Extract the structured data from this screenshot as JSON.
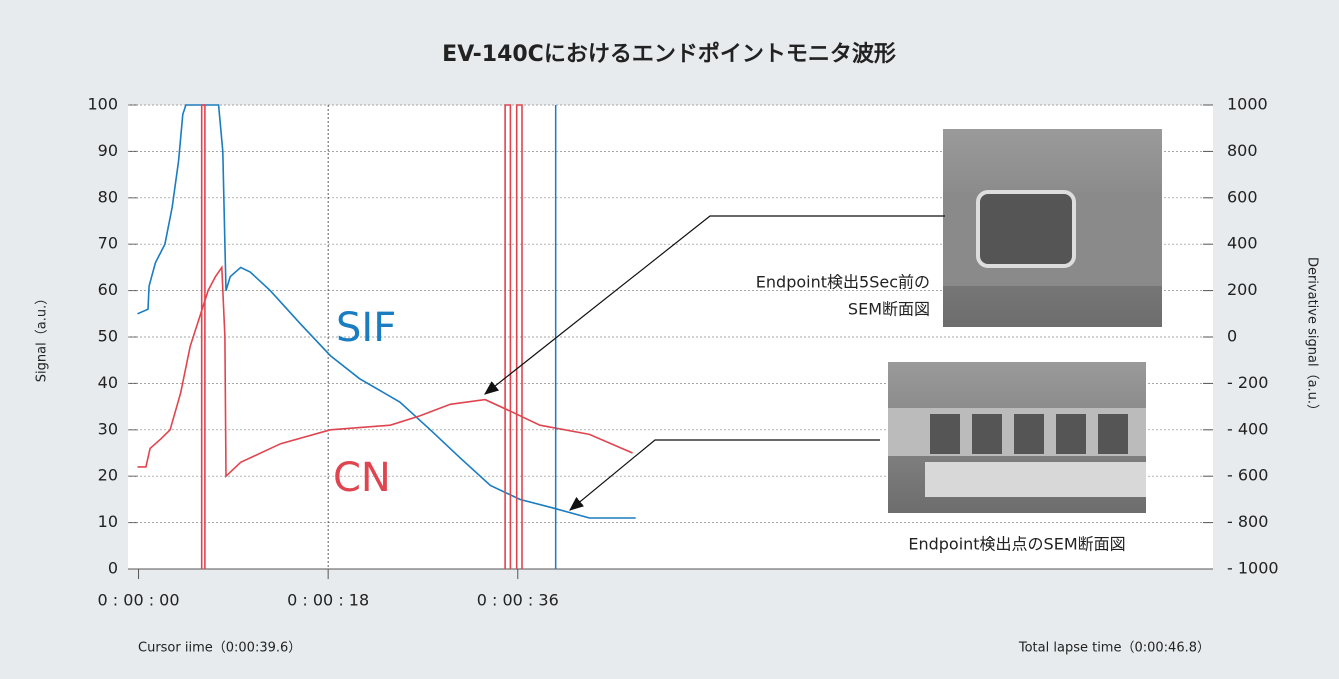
{
  "chart_data": {
    "type": "line",
    "title": "EV-140Cにおけるエンドポイントモニタ波形",
    "ylabel": "Signal（a.u.）",
    "y2label": "Derivative signal（a.u.）",
    "xlim": [
      -1,
      102
    ],
    "xticks": [
      {
        "value": 0,
        "label": "0 : 00 : 00"
      },
      {
        "value": 18,
        "label": "0 : 00 : 18"
      },
      {
        "value": 36,
        "label": "0 : 00 : 36"
      }
    ],
    "ylim": [
      0,
      100
    ],
    "yticks": [
      0,
      10,
      20,
      30,
      40,
      50,
      60,
      70,
      80,
      90,
      100
    ],
    "y2lim": [
      -1000,
      1000
    ],
    "y2ticks": [
      {
        "value": 1000,
        "label": "1000"
      },
      {
        "value": 800,
        "label": "800"
      },
      {
        "value": 600,
        "label": "600"
      },
      {
        "value": 400,
        "label": "400"
      },
      {
        "value": 200,
        "label": "200"
      },
      {
        "value": 0,
        "label": "0"
      },
      {
        "value": -200,
        "label": "- 200"
      },
      {
        "value": -400,
        "label": "- 400"
      },
      {
        "value": -600,
        "label": "- 600"
      },
      {
        "value": -800,
        "label": "- 800"
      },
      {
        "value": -1000,
        "label": "- 1000"
      }
    ],
    "grid": true,
    "series": [
      {
        "name": "SIF",
        "color": "#1a7cc1",
        "x": [
          -0.1,
          0.9,
          1.0,
          1.6,
          2.5,
          3.2,
          3.8,
          4.2,
          4.5,
          7.6,
          8.0,
          8.2,
          8.3,
          8.7,
          9.7,
          10.6,
          12.5,
          15.3,
          18.2,
          21.0,
          24.8,
          27.7,
          30.5,
          33.4,
          36.2,
          39.6,
          42.8,
          47.2
        ],
        "values": [
          55,
          56,
          61,
          66,
          70,
          78,
          88,
          98,
          100,
          100,
          90,
          70,
          60,
          63,
          65,
          64,
          60,
          53,
          46,
          41,
          36,
          30,
          24,
          18,
          15,
          13,
          11,
          11
        ]
      },
      {
        "name": "CN",
        "color": "#e0454f",
        "x": [
          -0.1,
          0.7,
          1.1,
          2.1,
          3.0,
          4.0,
          4.9,
          5.9,
          6.6,
          7.3,
          7.9,
          8.2,
          8.3,
          9.7,
          13.5,
          18.2,
          23.9,
          26.7,
          29.6,
          32.9,
          35.3,
          38.1,
          42.8,
          46.9
        ],
        "values": [
          22,
          22,
          26,
          28,
          30,
          38,
          48,
          55,
          60,
          63,
          65,
          50,
          20,
          23,
          27,
          30,
          31,
          33,
          35.5,
          36.5,
          34,
          31,
          29,
          25
        ]
      },
      {
        "color": "#e0454f",
        "axis": "y2",
        "x": [
          6.0,
          6.0,
          6.3,
          6.3,
          20,
          34.8,
          34.8,
          35.3,
          35.3,
          35.6,
          35.9,
          35.9,
          36.4,
          36.4
        ],
        "values": [
          -1000,
          1000,
          1000,
          -1000,
          null,
          -1000,
          1000,
          1000,
          -1000,
          null,
          -1000,
          1000,
          1000,
          -1000
        ]
      }
    ],
    "cursor": {
      "x": 39.6,
      "color": "#1a7cc1",
      "label": "Cursor iime（0:00:39.6）"
    },
    "total_label": "Total lapse time（0:00:46.8）",
    "annotations": [
      "Endpoint検出5Sec前の",
      "SEM断面図",
      "Endpoint検出点のSEM断面図"
    ]
  }
}
